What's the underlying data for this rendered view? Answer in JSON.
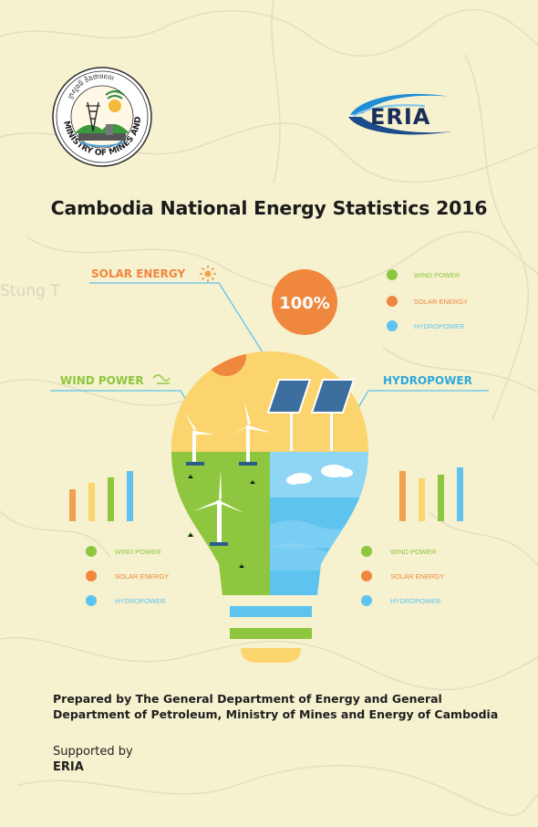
{
  "map_background": {
    "label": "Stung T"
  },
  "ministry_logo": {
    "khmer_text": "ក្រសួងរ៉ែ និងថាមពល",
    "english_text": "MINISTRY OF MINES AND ENERGY"
  },
  "eria_logo": {
    "text": "ERIA"
  },
  "title": "Cambodia National Energy Statistics 2016",
  "infographic": {
    "solar_label": "SOLAR ENERGY",
    "wind_label": "WIND POWER",
    "hydro_label": "HYDROPOWER",
    "percent": "100%",
    "legend_top": [
      "WIND POWER",
      "SOLAR ENERGY",
      "HYDROPOWER"
    ],
    "legend_left": [
      "WIND POWER",
      "SOLAR ENERGY",
      "HYDROPOWER"
    ],
    "legend_right": [
      "WIND POWER",
      "SOLAR ENERGY",
      "HYDROPOWER"
    ]
  },
  "colors": {
    "wind": "#8ec63f",
    "solar": "#f0873f",
    "hydro": "#5ec4ef",
    "bulb_yellow": "#fbd46d"
  },
  "prepared_by": "Prepared by The General Department of Energy and General Department of Petroleum, Ministry of Mines and Energy of Cambodia",
  "supported_by_label": "Supported by",
  "supported_by_org": "ERIA"
}
